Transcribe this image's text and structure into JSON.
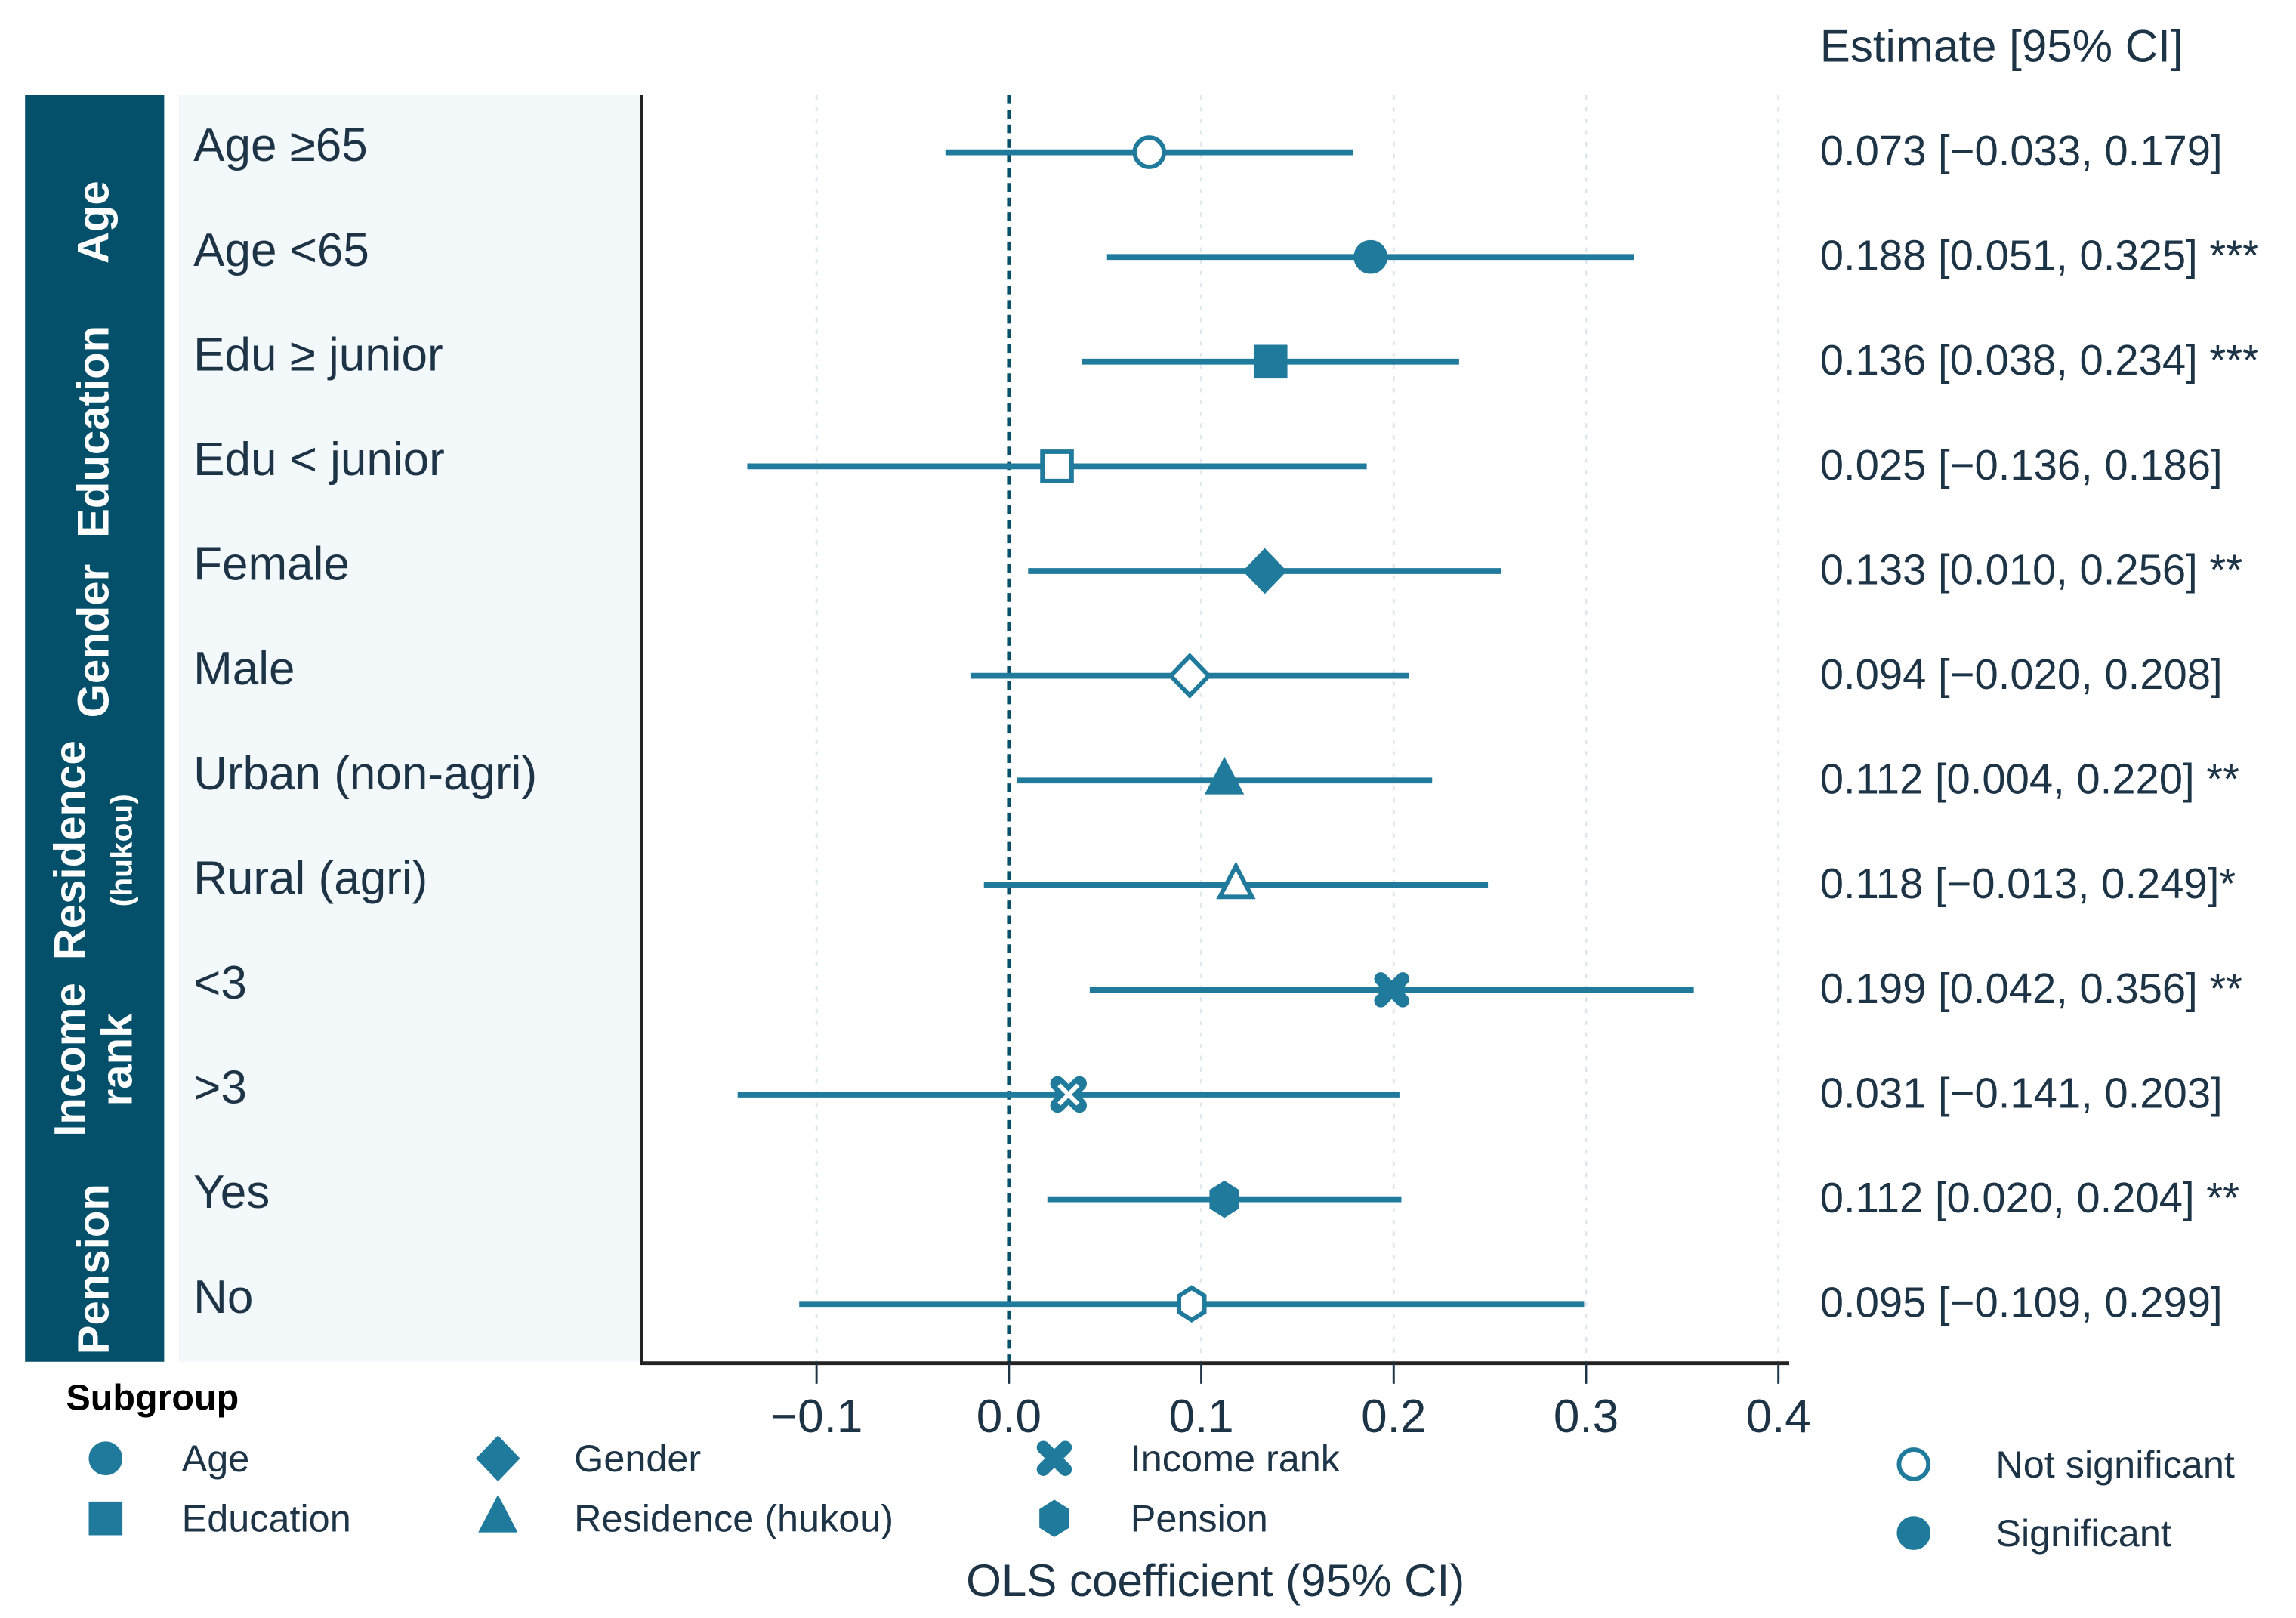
{
  "chart_data": {
    "type": "forest",
    "xlabel": "OLS coefficient (95% CI)",
    "estimate_header": "Estimate [95% CI]",
    "xlim": [
      -0.19,
      0.4
    ],
    "xticks": [
      -0.1,
      0.0,
      0.1,
      0.2,
      0.3,
      0.4
    ],
    "xtick_labels": [
      "−0.1",
      "0.0",
      "0.1",
      "0.2",
      "0.3",
      "0.4"
    ],
    "reference_line": 0,
    "grid": "vertical dotted",
    "colors": {
      "group_panel": "#04506a",
      "label_panel": "#f3f8fb",
      "marker": "#1f7a9c",
      "reference": "#04506a",
      "text": "#1d3346"
    },
    "groups": [
      {
        "label": "Age",
        "sublabel": "",
        "marker": "circle"
      },
      {
        "label": "Education",
        "sublabel": "",
        "marker": "square"
      },
      {
        "label": "Gender",
        "sublabel": "",
        "marker": "diamond"
      },
      {
        "label": "Residence",
        "sublabel": "(hukou)",
        "marker": "triangle"
      },
      {
        "label": "Income rank",
        "sublabel": "",
        "marker": "x"
      },
      {
        "label": "Pension",
        "sublabel": "",
        "marker": "hexagon"
      }
    ],
    "rows": [
      {
        "group": 0,
        "label": "Age ≥65",
        "estimate": 0.073,
        "lo": -0.033,
        "hi": 0.179,
        "significant": false,
        "text": "0.073 [−0.033, 0.179]"
      },
      {
        "group": 0,
        "label": "Age <65",
        "estimate": 0.188,
        "lo": 0.051,
        "hi": 0.325,
        "significant": true,
        "text": "0.188 [0.051, 0.325] ***"
      },
      {
        "group": 1,
        "label": "Edu ≥ junior",
        "estimate": 0.136,
        "lo": 0.038,
        "hi": 0.234,
        "significant": true,
        "text": "0.136 [0.038, 0.234] ***"
      },
      {
        "group": 1,
        "label": "Edu < junior",
        "estimate": 0.025,
        "lo": -0.136,
        "hi": 0.186,
        "significant": false,
        "text": "0.025 [−0.136, 0.186]"
      },
      {
        "group": 2,
        "label": "Female",
        "estimate": 0.133,
        "lo": 0.01,
        "hi": 0.256,
        "significant": true,
        "text": "0.133 [0.010, 0.256] **"
      },
      {
        "group": 2,
        "label": "Male",
        "estimate": 0.094,
        "lo": -0.02,
        "hi": 0.208,
        "significant": false,
        "text": "0.094 [−0.020, 0.208]"
      },
      {
        "group": 3,
        "label": "Urban (non-agri)",
        "estimate": 0.112,
        "lo": 0.004,
        "hi": 0.22,
        "significant": true,
        "text": "0.112 [0.004, 0.220] **"
      },
      {
        "group": 3,
        "label": "Rural (agri)",
        "estimate": 0.118,
        "lo": -0.013,
        "hi": 0.249,
        "significant": false,
        "text": "0.118 [−0.013, 0.249]*"
      },
      {
        "group": 4,
        "label": "<3",
        "estimate": 0.199,
        "lo": 0.042,
        "hi": 0.356,
        "significant": true,
        "text": "0.199 [0.042, 0.356] **"
      },
      {
        "group": 4,
        "label": ">3",
        "estimate": 0.031,
        "lo": -0.141,
        "hi": 0.203,
        "significant": false,
        "text": "0.031 [−0.141, 0.203]"
      },
      {
        "group": 5,
        "label": "Yes",
        "estimate": 0.112,
        "lo": 0.02,
        "hi": 0.204,
        "significant": true,
        "text": "0.112 [0.020, 0.204] **"
      },
      {
        "group": 5,
        "label": "No",
        "estimate": 0.095,
        "lo": -0.109,
        "hi": 0.299,
        "significant": false,
        "text": "0.095 [−0.109, 0.299]"
      }
    ],
    "legend": {
      "title": "Subgroup",
      "placement": "bottom",
      "items": [
        {
          "label": "Age",
          "marker": "circle"
        },
        {
          "label": "Education",
          "marker": "square"
        },
        {
          "label": "Gender",
          "marker": "diamond"
        },
        {
          "label": "Residence (hukou)",
          "marker": "triangle"
        },
        {
          "label": "Income rank",
          "marker": "x"
        },
        {
          "label": "Pension",
          "marker": "hexagon"
        }
      ],
      "significance": [
        {
          "label": "Not significant",
          "filled": false
        },
        {
          "label": "Significant",
          "filled": true
        }
      ]
    }
  }
}
